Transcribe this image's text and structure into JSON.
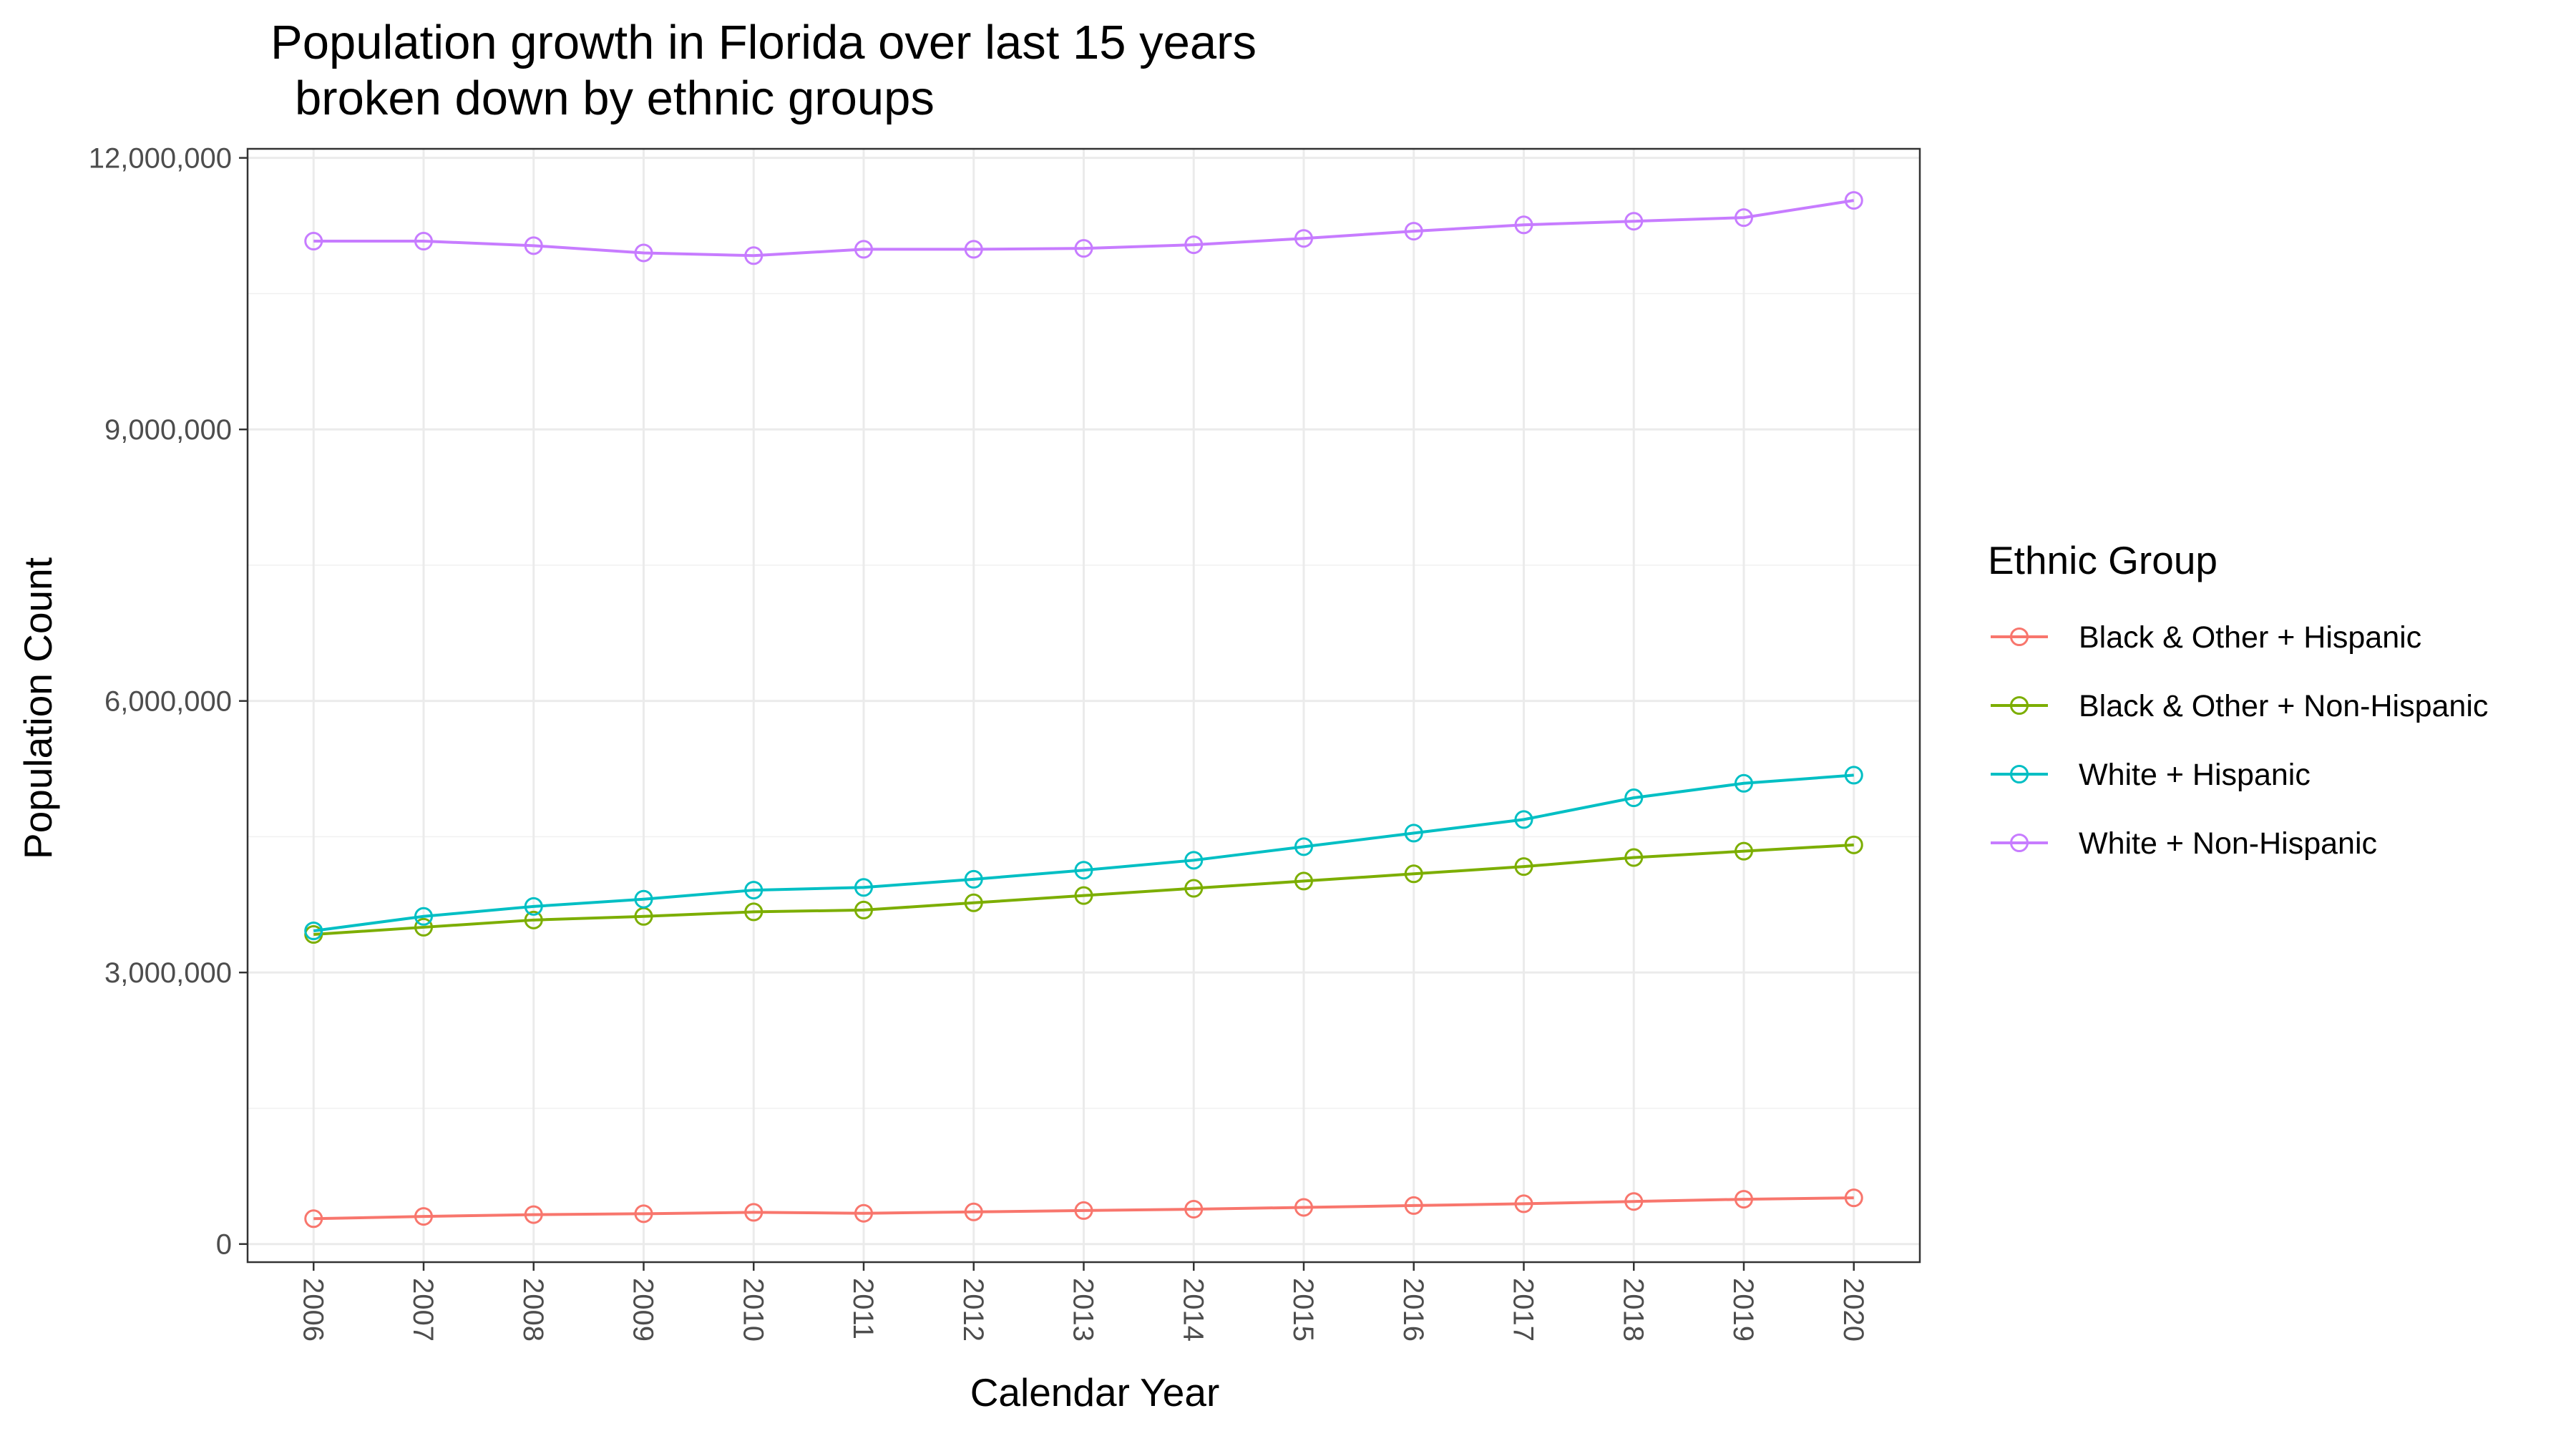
{
  "chart_data": {
    "type": "line",
    "title": "Population growth in Florida over last 15 years",
    "subtitle": "broken down by ethnic groups",
    "xlabel": "Calendar Year",
    "ylabel": "Population Count",
    "ylim": [
      -200000,
      12100000
    ],
    "yticks": [
      0,
      3000000,
      6000000,
      9000000,
      12000000
    ],
    "ytick_labels": [
      "0",
      "3,000,000",
      "6,000,000",
      "9,000,000",
      "12,000,000"
    ],
    "x": [
      "2006",
      "2007",
      "2008",
      "2009",
      "2010",
      "2011",
      "2012",
      "2013",
      "2014",
      "2015",
      "2016",
      "2017",
      "2018",
      "2019",
      "2020"
    ],
    "grid": true,
    "legend": {
      "title": "Ethnic Group",
      "position": "right"
    },
    "series": [
      {
        "name": "Black & Other + Hispanic",
        "color": "#F8766D",
        "values": [
          280000,
          305000,
          325000,
          335000,
          350000,
          340000,
          355000,
          370000,
          385000,
          405000,
          425000,
          445000,
          470000,
          495000,
          510000
        ]
      },
      {
        "name": "Black & Other + Non-Hispanic",
        "color": "#7CAE00",
        "values": [
          3420000,
          3500000,
          3580000,
          3620000,
          3670000,
          3690000,
          3770000,
          3850000,
          3930000,
          4010000,
          4090000,
          4170000,
          4270000,
          4340000,
          4410000
        ]
      },
      {
        "name": "White + Hispanic",
        "color": "#00BFC4",
        "values": [
          3460000,
          3620000,
          3730000,
          3810000,
          3910000,
          3940000,
          4030000,
          4130000,
          4240000,
          4390000,
          4540000,
          4690000,
          4930000,
          5090000,
          5180000
        ]
      },
      {
        "name": "White + Non-Hispanic",
        "color": "#C77CFF",
        "values": [
          11080000,
          11080000,
          11030000,
          10950000,
          10920000,
          10990000,
          10990000,
          11000000,
          11040000,
          11110000,
          11190000,
          11260000,
          11300000,
          11340000,
          11530000
        ]
      }
    ]
  }
}
